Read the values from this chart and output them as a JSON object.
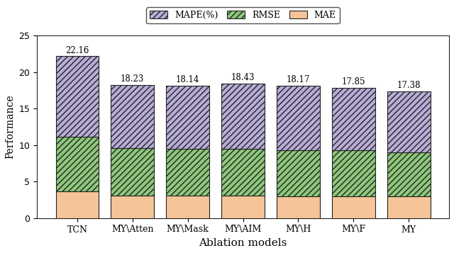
{
  "categories": [
    "TCN",
    "MY\\Atten",
    "MY\\Mask",
    "MY\\AIM",
    "MY\\H",
    "MY\\F",
    "MY"
  ],
  "mae": [
    3.7,
    3.1,
    3.1,
    3.1,
    3.0,
    3.0,
    3.0
  ],
  "rmse": [
    7.4,
    6.5,
    6.4,
    6.4,
    6.3,
    6.3,
    6.0
  ],
  "mape": [
    11.06,
    8.63,
    8.64,
    8.93,
    8.87,
    8.55,
    8.38
  ],
  "totals": [
    22.16,
    18.23,
    18.14,
    18.43,
    18.17,
    17.85,
    17.38
  ],
  "mae_color": "#f5c499",
  "rmse_color": "#8dc87a",
  "mape_color": "#b8acd8",
  "rmse_hatch": "////",
  "mape_hatch": "////",
  "ylabel": "Performance",
  "xlabel": "Ablation models",
  "ylim": [
    0,
    25
  ],
  "yticks": [
    0,
    5,
    10,
    15,
    20,
    25
  ],
  "bar_width": 0.78,
  "edgecolor": "#222222",
  "label_fontsize": 10,
  "tick_fontsize": 9,
  "annot_fontsize": 8.5
}
